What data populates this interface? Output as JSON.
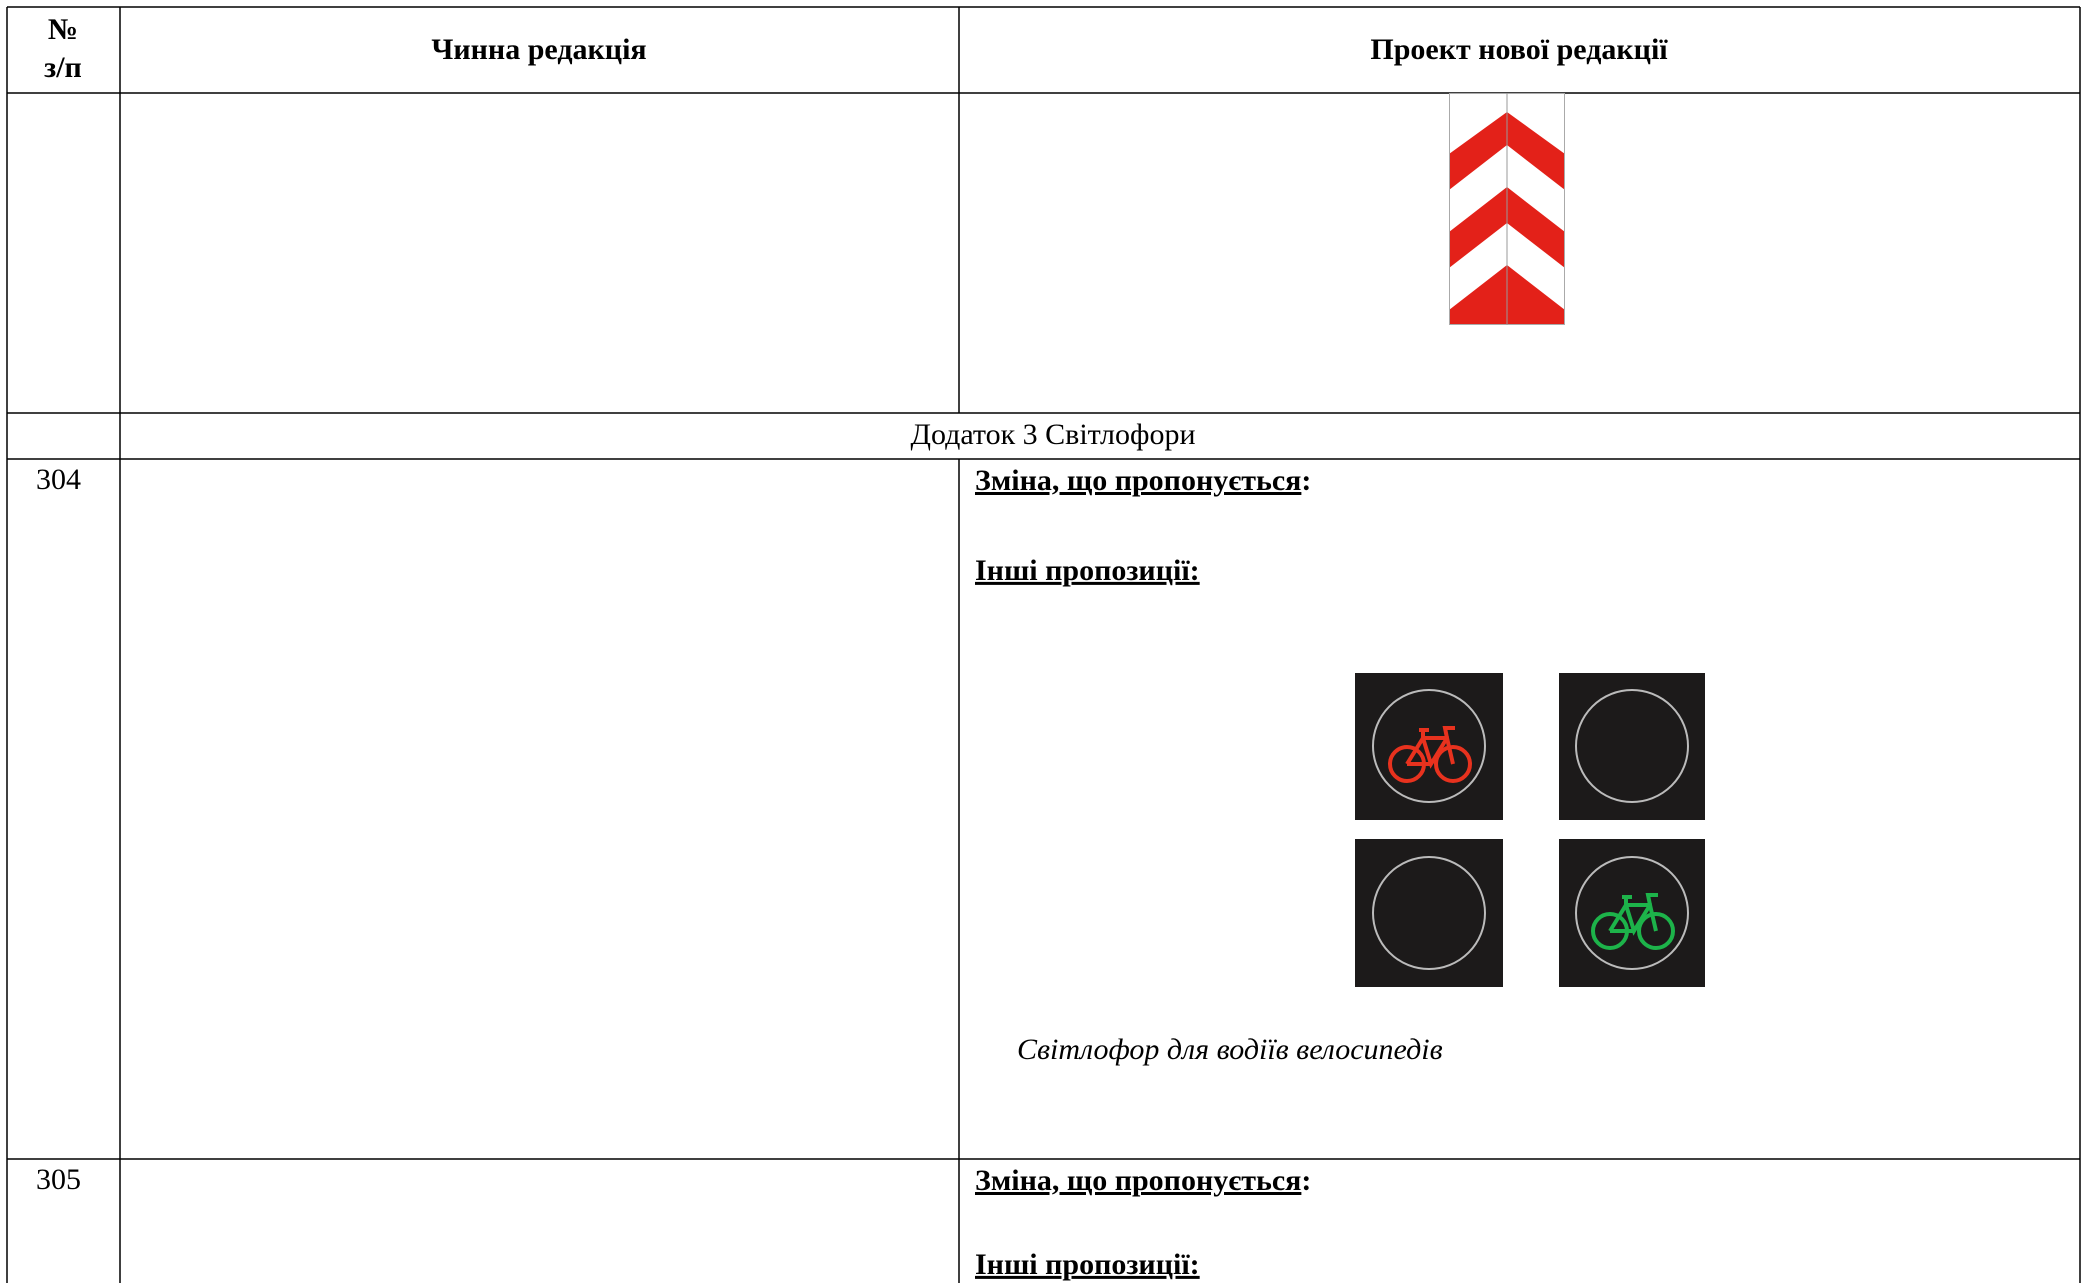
{
  "header": {
    "number": [
      "№",
      "з/п"
    ],
    "current": "Чинна редакція",
    "proposed": "Проект нової редакції"
  },
  "section": "Додаток 3 Світлофори",
  "rows": [
    {
      "number": "304",
      "change": [
        "Зміна, що пропонується",
        ":"
      ],
      "other": "Інші пропозиції:",
      "caption": "Світлофор для водіїв велосипедів"
    },
    {
      "number": "305",
      "change": [
        "Зміна, що пропонується",
        ":"
      ],
      "other": "Інші пропозиції:"
    }
  ]
}
